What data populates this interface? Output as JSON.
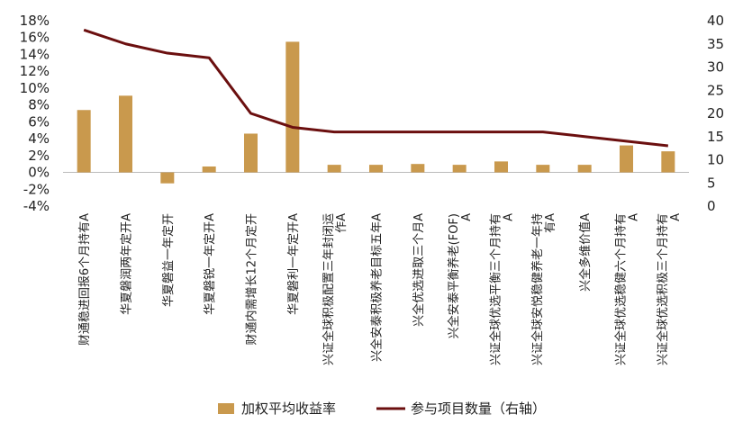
{
  "chart_data": {
    "type": "bar",
    "categories": [
      "财通稳进回报6个月持有A",
      "华夏磐润两年定开A",
      "华夏磐益一年定开",
      "华夏磐锐一年定开A",
      "财通内需增长12个月定开",
      "华夏磐利一年定开A",
      "兴证全球积极配置三年封闭运作A",
      "兴全安泰积极养老目标五年A",
      "兴全优选进取三个月A",
      "兴全安泰平衡养老(FOF)A",
      "兴证全球优选平衡三个月持有A",
      "兴证全球安悦稳健养老一年持有A",
      "兴全多维价值A",
      "兴证全球优选稳健六个月持有A",
      "兴证全球优选积极三个月持有A"
    ],
    "series": [
      {
        "name": "加权平均收益率",
        "type": "bar",
        "axis": "left",
        "color": "#C9994D",
        "values": [
          7.4,
          9.1,
          -1.3,
          0.7,
          4.6,
          15.5,
          0.9,
          0.9,
          1.0,
          0.9,
          1.3,
          0.9,
          0.9,
          3.2,
          2.5
        ]
      },
      {
        "name": "参与项目数量（右轴）",
        "type": "line",
        "axis": "right",
        "color": "#6B0F0F",
        "values": [
          38,
          35,
          33,
          32,
          20,
          17,
          16,
          16,
          16,
          16,
          16,
          16,
          15,
          14,
          13
        ]
      }
    ],
    "y_left": {
      "ylim": [
        -4,
        18
      ],
      "ticks": [
        -4,
        -2,
        0,
        2,
        4,
        6,
        8,
        10,
        12,
        14,
        16,
        18
      ],
      "tick_labels": [
        "-4%",
        "-2%",
        "0%",
        "2%",
        "4%",
        "6%",
        "8%",
        "10%",
        "12%",
        "14%",
        "16%",
        "18%"
      ]
    },
    "y_right": {
      "ylim": [
        0,
        40
      ],
      "ticks": [
        0,
        5,
        10,
        15,
        20,
        25,
        30,
        35,
        40
      ],
      "tick_labels": [
        "0",
        "5",
        "10",
        "15",
        "20",
        "25",
        "30",
        "35",
        "40"
      ]
    },
    "legend": {
      "placement": "bottom"
    },
    "grid": false
  },
  "colors": {
    "bar": "#C9994D",
    "line": "#6B0F0F"
  }
}
